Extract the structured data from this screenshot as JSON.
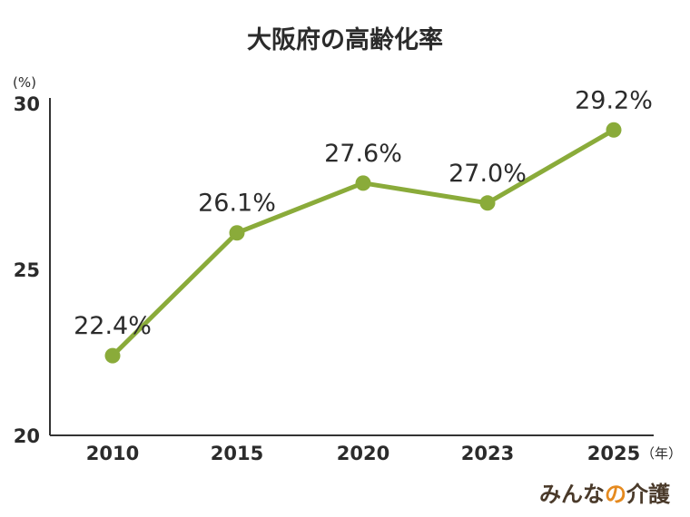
{
  "chart_data": {
    "type": "line",
    "title": "大阪府の高齢化率",
    "y_unit": "(%)",
    "x_unit": "（年）",
    "categories": [
      "2010",
      "2015",
      "2020",
      "2023",
      "2025"
    ],
    "series": [
      {
        "values": [
          22.4,
          26.1,
          27.6,
          27.0,
          29.2
        ],
        "data_labels": [
          "22.4%",
          "26.1%",
          "27.6%",
          "27.0%",
          "29.2%"
        ],
        "color": "#8aab3a"
      }
    ],
    "ylim": [
      20,
      30
    ],
    "yticks": [
      20,
      25,
      30
    ],
    "grid": false,
    "legend": "none"
  },
  "brand": {
    "prefix": "みんな",
    "middle": "の",
    "suffix": "介護",
    "accent_color": "#e58a1f"
  }
}
